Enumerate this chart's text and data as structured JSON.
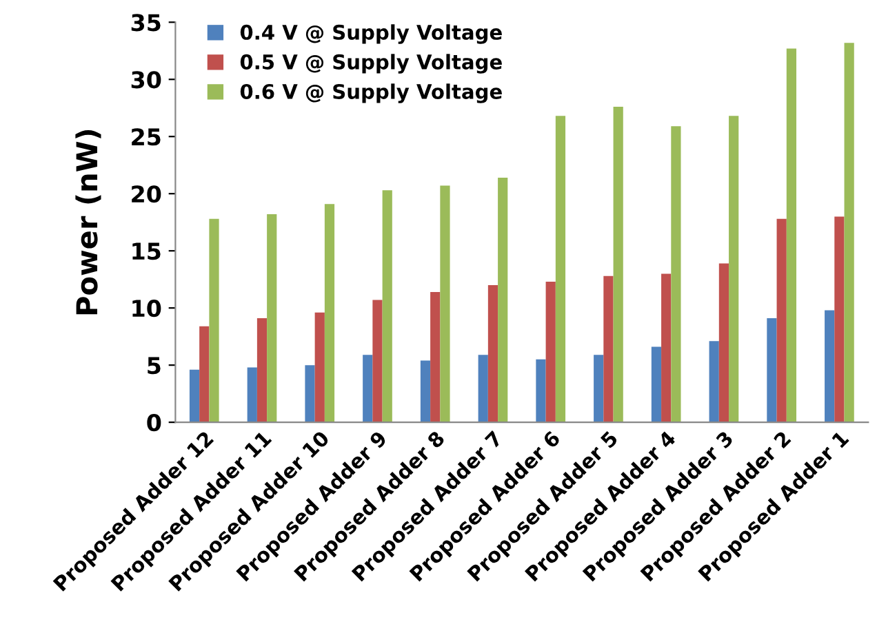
{
  "chart_data": {
    "type": "bar",
    "ylabel": "Power (nW)",
    "categories": [
      "Proposed Adder 12",
      "Proposed Adder 11",
      "Proposed Adder 10",
      "Proposed Adder 9",
      "Proposed Adder 8",
      "Proposed Adder 7",
      "Proposed Adder 6",
      "Proposed Adder 5",
      "Proposed Adder 4",
      "Proposed Adder 3",
      "Proposed Adder 2",
      "Proposed Adder 1"
    ],
    "series": [
      {
        "name": "0.4 V @ Supply Voltage",
        "color": "#4f81bd",
        "values": [
          4.6,
          4.8,
          5.0,
          5.9,
          5.4,
          5.9,
          5.5,
          5.9,
          6.6,
          7.1,
          9.1,
          9.8
        ]
      },
      {
        "name": "0.5 V @ Supply Voltage",
        "color": "#c0504d",
        "values": [
          8.4,
          9.1,
          9.6,
          10.7,
          11.4,
          12.0,
          12.3,
          12.8,
          13.0,
          13.9,
          17.8,
          18.0
        ]
      },
      {
        "name": "0.6 V @ Supply Voltage",
        "color": "#9bbb59",
        "values": [
          17.8,
          18.2,
          19.1,
          20.3,
          20.7,
          21.4,
          26.8,
          27.6,
          25.9,
          26.8,
          32.7,
          33.2
        ]
      }
    ],
    "ylim": [
      0,
      35
    ],
    "yticks": [
      0,
      5,
      10,
      15,
      20,
      25,
      30,
      35
    ],
    "grid": false,
    "legend": "top left"
  }
}
